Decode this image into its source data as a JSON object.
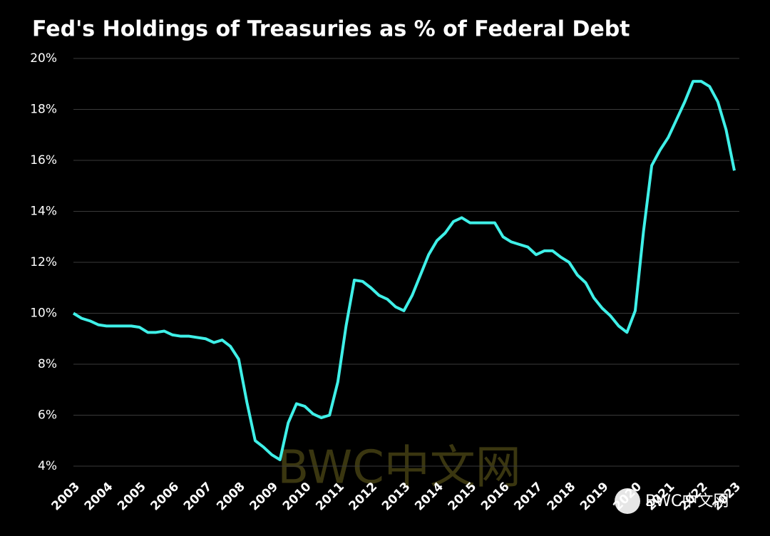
{
  "chart_data": {
    "type": "line",
    "title": "Fed's Holdings of Treasuries as % of Federal Debt",
    "categories": [
      "2003",
      null,
      null,
      null,
      "2004",
      null,
      null,
      null,
      "2005",
      null,
      null,
      null,
      "2006",
      null,
      null,
      null,
      "2007",
      null,
      null,
      null,
      "2008",
      null,
      null,
      null,
      "2009",
      null,
      null,
      null,
      "2010",
      null,
      null,
      null,
      "2011",
      null,
      null,
      null,
      "2012",
      null,
      null,
      null,
      "2013",
      null,
      null,
      null,
      "2014",
      null,
      null,
      null,
      "2015",
      null,
      null,
      null,
      "2016",
      null,
      null,
      null,
      "2017",
      null,
      null,
      null,
      "2018",
      null,
      null,
      null,
      "2019",
      null,
      null,
      null,
      "2020",
      null,
      null,
      null,
      "2021",
      null,
      null,
      null,
      "2022",
      null,
      null,
      null,
      "2023"
    ],
    "series": [
      {
        "color": "#3ff0e8",
        "values": [
          10.0,
          9.8,
          9.7,
          9.55,
          9.5,
          9.5,
          9.5,
          9.5,
          9.45,
          9.25,
          9.25,
          9.3,
          9.15,
          9.1,
          9.1,
          9.05,
          9.0,
          8.85,
          8.95,
          8.7,
          8.2,
          6.5,
          5.0,
          4.75,
          4.45,
          4.25,
          5.7,
          6.45,
          6.35,
          6.05,
          5.9,
          6.0,
          7.3,
          9.5,
          11.3,
          11.25,
          11.0,
          10.7,
          10.55,
          10.25,
          10.1,
          10.7,
          11.5,
          12.3,
          12.85,
          13.15,
          13.6,
          13.75,
          13.55,
          13.55,
          13.55,
          13.55,
          13.0,
          12.8,
          12.7,
          12.6,
          12.3,
          12.45,
          12.45,
          12.2,
          12.0,
          11.5,
          11.2,
          10.6,
          10.2,
          9.9,
          9.5,
          9.25,
          10.1,
          13.2,
          15.8,
          16.4,
          16.9,
          17.6,
          18.3,
          19.1,
          19.1,
          18.9,
          18.3,
          17.2,
          15.6
        ]
      }
    ],
    "ylim": [
      4,
      20
    ],
    "yticks": [
      {
        "value": 4,
        "label": "4%"
      },
      {
        "value": 6,
        "label": "6%"
      },
      {
        "value": 8,
        "label": "8%"
      },
      {
        "value": 10,
        "label": "10%"
      },
      {
        "value": 12,
        "label": "12%"
      },
      {
        "value": 14,
        "label": "14%"
      },
      {
        "value": 16,
        "label": "16%"
      },
      {
        "value": 18,
        "label": "18%"
      },
      {
        "value": 20,
        "label": "20%"
      }
    ],
    "grid": true,
    "watermark": "BWC中文网"
  }
}
